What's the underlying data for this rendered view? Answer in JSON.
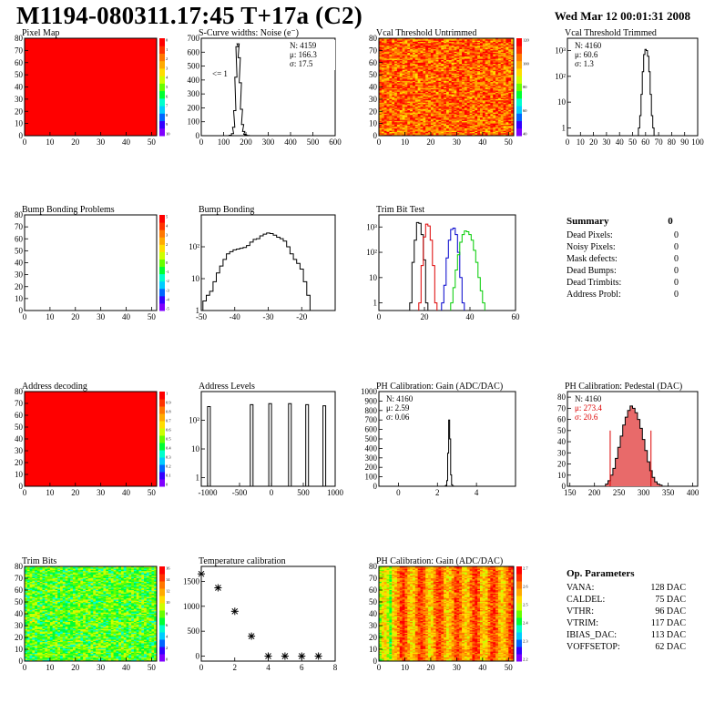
{
  "header": {
    "title": "M1194-080311.17:45 T+17a (C2)",
    "date": "Wed Mar 12 00:01:31 2008"
  },
  "colors": {
    "map_red": "#ff0000",
    "palette": [
      "#7f00ff",
      "#3300ff",
      "#0066ff",
      "#00ccff",
      "#00ffcc",
      "#00ff33",
      "#66ff00",
      "#ccff00",
      "#ffdd00",
      "#ffaa00",
      "#ff7700",
      "#ff3300",
      "#ff0000"
    ],
    "trim_red": "#dd0000",
    "trim_blue": "#0000cc",
    "trim_green": "#00cc00",
    "pedestal_fill": "#e86a6a"
  },
  "chart_data": [
    {
      "id": "pixel-map",
      "type": "heatmap",
      "title": "Pixel Map",
      "xlim": [
        0,
        52
      ],
      "ylim": [
        0,
        80
      ],
      "xticks": [
        0,
        10,
        20,
        30,
        40,
        50
      ],
      "yticks": [
        0,
        10,
        20,
        30,
        40,
        50,
        60,
        70,
        80
      ],
      "fill": "uniform",
      "level": 1.0,
      "palette_ticks": [
        "0",
        "1",
        "2",
        "3",
        "4",
        "5",
        "6",
        "7",
        "8",
        "9",
        "10"
      ]
    },
    {
      "id": "scurve",
      "type": "histogram",
      "title": "S-Curve widths: Noise (e⁻)",
      "xlim": [
        0,
        600
      ],
      "ylim": [
        0,
        700
      ],
      "xticks": [
        0,
        100,
        200,
        300,
        400,
        500,
        600
      ],
      "yticks": [
        0,
        100,
        200,
        300,
        400,
        500,
        600,
        700
      ],
      "x": [
        130,
        140,
        145,
        150,
        155,
        160,
        165,
        170,
        175,
        180,
        185,
        190,
        195,
        200,
        210,
        220
      ],
      "values": [
        3,
        15,
        60,
        180,
        420,
        640,
        660,
        560,
        380,
        190,
        80,
        30,
        10,
        4,
        2,
        0
      ],
      "stats": [
        "N: 4159",
        "μ: 166.3",
        "σ: 17.5"
      ],
      "annotation": "<= 1"
    },
    {
      "id": "vcal-untrimmed",
      "type": "heatmap",
      "title": "Vcal Threshold Untrimmed",
      "xlim": [
        0,
        52
      ],
      "ylim": [
        0,
        80
      ],
      "xticks": [
        0,
        10,
        20,
        30,
        40,
        50
      ],
      "yticks": [
        0,
        10,
        20,
        30,
        40,
        50,
        60,
        70,
        80
      ],
      "fill": "noisy",
      "level": 0.85,
      "palette_ticks": [
        "120",
        "100",
        "80",
        "60",
        "40"
      ]
    },
    {
      "id": "vcal-trimmed",
      "type": "histogram",
      "title": "Vcal Threshold Trimmed",
      "xlim": [
        0,
        100
      ],
      "ylim_log": [
        0.5,
        3000
      ],
      "log": true,
      "xticks": [
        0,
        10,
        20,
        30,
        40,
        50,
        60,
        70,
        80,
        90,
        100
      ],
      "yticks": [
        1,
        10,
        100,
        1000
      ],
      "ytick_labels": [
        "1",
        "10",
        "10²",
        "10³"
      ],
      "x": [
        55,
        56,
        57,
        58,
        59,
        60,
        61,
        62,
        63,
        64,
        65,
        66
      ],
      "values": [
        1,
        3,
        20,
        150,
        700,
        1100,
        1000,
        600,
        150,
        20,
        3,
        1
      ],
      "stats": [
        "N: 4160",
        "μ: 60.6",
        "σ:  1.3"
      ]
    },
    {
      "id": "bump-problems",
      "type": "heatmap",
      "title": "Bump Bonding Problems",
      "xlim": [
        0,
        52
      ],
      "ylim": [
        0,
        80
      ],
      "xticks": [
        0,
        10,
        20,
        30,
        40,
        50
      ],
      "yticks": [
        0,
        10,
        20,
        30,
        40,
        50,
        60,
        70,
        80
      ],
      "fill": "empty",
      "palette_ticks": [
        "5",
        "4",
        "3",
        "2",
        "1",
        "0",
        "-1",
        "-2",
        "-3",
        "-4",
        "-5"
      ]
    },
    {
      "id": "bump-bonding",
      "type": "histogram",
      "title": "Bump Bonding",
      "xlim": [
        -50,
        -10
      ],
      "ylim_log": [
        1,
        1000
      ],
      "log": true,
      "xticks": [
        -50,
        -40,
        -30,
        -20
      ],
      "yticks": [
        1,
        10,
        100
      ],
      "ytick_labels": [
        "1",
        "10",
        "10²"
      ],
      "x": [
        -49,
        -48,
        -47,
        -46,
        -45,
        -44,
        -43,
        -42,
        -41,
        -40,
        -39,
        -38,
        -37,
        -36,
        -35,
        -34,
        -33,
        -32,
        -31,
        -30,
        -29,
        -28,
        -27,
        -26,
        -25,
        -24,
        -23,
        -22,
        -21,
        -20,
        -19,
        -18,
        -17
      ],
      "values": [
        2,
        3,
        4,
        8,
        15,
        25,
        40,
        60,
        70,
        80,
        85,
        90,
        95,
        110,
        140,
        170,
        180,
        220,
        250,
        270,
        260,
        230,
        200,
        180,
        150,
        100,
        60,
        40,
        30,
        20,
        8,
        3,
        1
      ]
    },
    {
      "id": "trim-bit",
      "type": "histogram",
      "title": "Trim Bit Test",
      "xlim": [
        0,
        60
      ],
      "ylim_log": [
        0.5,
        3000
      ],
      "log": true,
      "xticks": [
        0,
        20,
        40,
        60
      ],
      "yticks": [
        1,
        10,
        100,
        1000
      ],
      "ytick_labels": [
        "1",
        "10",
        "10²",
        "10³"
      ],
      "series": [
        {
          "name": "",
          "color": "black",
          "x": [
            14,
            15,
            16,
            17,
            18,
            19,
            20,
            21
          ],
          "values": [
            1,
            40,
            300,
            1500,
            1400,
            500,
            50,
            1
          ]
        },
        {
          "name": "",
          "color": "red",
          "x": [
            18,
            19,
            20,
            21,
            22,
            23,
            24,
            25
          ],
          "values": [
            1,
            30,
            400,
            1300,
            1100,
            300,
            30,
            1
          ]
        },
        {
          "name": "",
          "color": "blue",
          "x": [
            28,
            29,
            30,
            31,
            32,
            33,
            34,
            35,
            36,
            37
          ],
          "values": [
            1,
            5,
            60,
            300,
            800,
            900,
            500,
            100,
            10,
            1
          ]
        },
        {
          "name": "",
          "color": "green",
          "x": [
            32,
            33,
            34,
            35,
            36,
            37,
            38,
            39,
            40,
            41,
            42,
            43,
            44,
            45,
            46
          ],
          "values": [
            1,
            4,
            20,
            80,
            250,
            500,
            700,
            650,
            500,
            300,
            120,
            40,
            10,
            3,
            1
          ]
        }
      ]
    },
    {
      "id": "address-decoding",
      "type": "heatmap",
      "title": "Address decoding",
      "xlim": [
        0,
        52
      ],
      "ylim": [
        0,
        80
      ],
      "xticks": [
        0,
        10,
        20,
        30,
        40,
        50
      ],
      "yticks": [
        0,
        10,
        20,
        30,
        40,
        50,
        60,
        70,
        80
      ],
      "fill": "uniform",
      "level": 1.0,
      "palette_ticks": [
        "1",
        "0.9",
        "0.8",
        "0.7",
        "0.6",
        "0.5",
        "0.4",
        "0.3",
        "0.2",
        "0.1",
        "0"
      ]
    },
    {
      "id": "address-levels",
      "type": "histogram",
      "title": "Address Levels",
      "xlim": [
        -1100,
        1000
      ],
      "ylim_log": [
        0.5,
        1000
      ],
      "log": true,
      "xticks": [
        -1000,
        -500,
        0,
        500,
        1000
      ],
      "yticks": [
        1,
        10,
        100
      ],
      "ytick_labels": [
        "1",
        "10",
        "10²"
      ],
      "peaks": [
        -980,
        -310,
        -20,
        290,
        560,
        830
      ],
      "values": [
        300,
        350,
        380,
        380,
        350,
        320
      ]
    },
    {
      "id": "ph-gain",
      "type": "histogram",
      "title": "PH Calibration: Gain (ADC/DAC)",
      "xlim": [
        -1,
        6
      ],
      "ylim": [
        0,
        1000
      ],
      "xticks": [
        0,
        2,
        4
      ],
      "yticks": [
        0,
        100,
        200,
        300,
        400,
        500,
        600,
        700,
        800,
        900,
        1000
      ],
      "x": [
        2.4,
        2.45,
        2.5,
        2.55,
        2.6,
        2.65,
        2.7,
        2.75,
        2.8
      ],
      "values": [
        2,
        10,
        60,
        350,
        700,
        500,
        120,
        15,
        2
      ],
      "stats": [
        "N: 4160",
        "μ: 2.59",
        "σ: 0.06"
      ]
    },
    {
      "id": "ph-pedestal",
      "type": "histogram",
      "title": "PH Calibration: Pedestal (DAC)",
      "xlim": [
        145,
        410
      ],
      "ylim": [
        0,
        85
      ],
      "xticks": [
        150,
        200,
        250,
        300,
        350,
        400
      ],
      "yticks": [
        0,
        10,
        20,
        30,
        40,
        50,
        60,
        70,
        80
      ],
      "x": [
        225,
        230,
        235,
        240,
        245,
        250,
        255,
        260,
        265,
        270,
        275,
        280,
        285,
        290,
        295,
        300,
        305,
        310,
        315,
        320,
        325,
        330,
        335
      ],
      "values": [
        2,
        5,
        10,
        16,
        25,
        35,
        45,
        55,
        62,
        68,
        72,
        70,
        66,
        60,
        52,
        42,
        32,
        22,
        14,
        8,
        4,
        2,
        1
      ],
      "fit_lines": [
        232,
        315
      ],
      "stats": [
        "N: 4160",
        "μ: 273.4",
        "σ: 20.6"
      ],
      "stat_colors": [
        "black",
        "red",
        "red"
      ]
    },
    {
      "id": "trim-bits",
      "type": "heatmap",
      "title": "Trim Bits",
      "xlim": [
        0,
        52
      ],
      "ylim": [
        0,
        80
      ],
      "xticks": [
        0,
        10,
        20,
        30,
        40,
        50
      ],
      "yticks": [
        0,
        10,
        20,
        30,
        40,
        50,
        60,
        70,
        80
      ],
      "fill": "noisy",
      "level": 0.5,
      "palette_ticks": [
        "16",
        "14",
        "12",
        "10",
        "8",
        "6",
        "4",
        "2",
        "0"
      ]
    },
    {
      "id": "temperature",
      "type": "scatter",
      "title": "Temperature calibration",
      "xlim": [
        0,
        8
      ],
      "ylim": [
        -100,
        1800
      ],
      "xticks": [
        0,
        2,
        4,
        6,
        8
      ],
      "yticks": [
        0,
        500,
        1000,
        1500
      ],
      "x": [
        0,
        1,
        2,
        3,
        4,
        5,
        6,
        7
      ],
      "values": [
        1650,
        1370,
        900,
        400,
        0,
        0,
        0,
        0
      ]
    },
    {
      "id": "ph-gain-map",
      "type": "heatmap",
      "title": "PH Calibration: Gain (ADC/DAC)",
      "xlim": [
        0,
        52
      ],
      "ylim": [
        0,
        80
      ],
      "xticks": [
        0,
        10,
        20,
        30,
        40,
        50
      ],
      "yticks": [
        0,
        10,
        20,
        30,
        40,
        50,
        60,
        70,
        80
      ],
      "fill": "noisy",
      "level": 0.8,
      "palette_ticks": [
        "2.7",
        "2.6",
        "2.5",
        "2.4",
        "2.3",
        "2.2"
      ]
    }
  ],
  "summary": {
    "title": "Summary",
    "total": "0",
    "rows": [
      {
        "label": "Dead Pixels:",
        "value": "0"
      },
      {
        "label": "Noisy Pixels:",
        "value": "0"
      },
      {
        "label": "Mask defects:",
        "value": "0"
      },
      {
        "label": "Dead Bumps:",
        "value": "0"
      },
      {
        "label": "Dead Trimbits:",
        "value": "0"
      },
      {
        "label": "Address Probl:",
        "value": "0"
      }
    ]
  },
  "op_parameters": {
    "title": "Op. Parameters",
    "rows": [
      {
        "label": "VANA:",
        "value": "128 DAC"
      },
      {
        "label": "CALDEL:",
        "value": "75 DAC"
      },
      {
        "label": "VTHR:",
        "value": "96 DAC"
      },
      {
        "label": "VTRIM:",
        "value": "117 DAC"
      },
      {
        "label": "IBIAS_DAC:",
        "value": "113 DAC"
      },
      {
        "label": "VOFFSETOP:",
        "value": "62 DAC"
      }
    ]
  }
}
